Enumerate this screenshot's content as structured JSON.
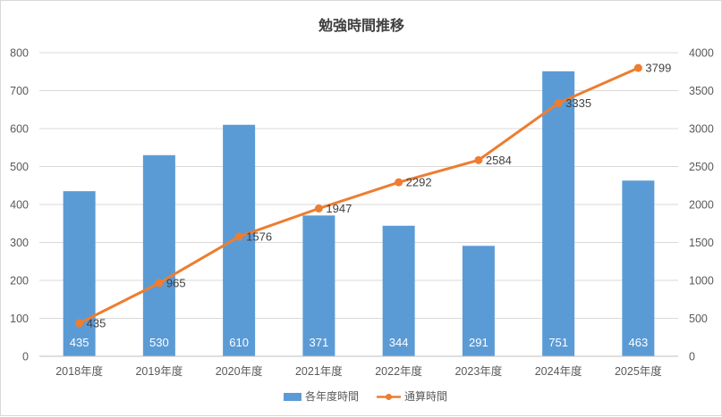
{
  "chart_data": {
    "type": "bar",
    "title": "勉強時間推移",
    "categories": [
      "2018年度",
      "2019年度",
      "2020年度",
      "2021年度",
      "2022年度",
      "2023年度",
      "2024年度",
      "2025年度"
    ],
    "series": [
      {
        "name": "各年度時間",
        "type": "bar",
        "axis": "left",
        "color": "#5b9bd5",
        "values": [
          435,
          530,
          610,
          371,
          344,
          291,
          751,
          463
        ]
      },
      {
        "name": "通算時間",
        "type": "line",
        "axis": "right",
        "color": "#ed7d31",
        "values": [
          435,
          965,
          1576,
          1947,
          2292,
          2584,
          3335,
          3799
        ]
      }
    ],
    "y_left": {
      "min": 0,
      "max": 800,
      "step": 100,
      "ticks": [
        "0",
        "100",
        "200",
        "300",
        "400",
        "500",
        "600",
        "700",
        "800"
      ]
    },
    "y_right": {
      "min": 0,
      "max": 4000,
      "step": 500,
      "ticks": [
        "0",
        "500",
        "1000",
        "1500",
        "2000",
        "2500",
        "3000",
        "3500",
        "4000"
      ]
    },
    "grid": true,
    "legend": "bottom-center",
    "data_labels": true
  }
}
